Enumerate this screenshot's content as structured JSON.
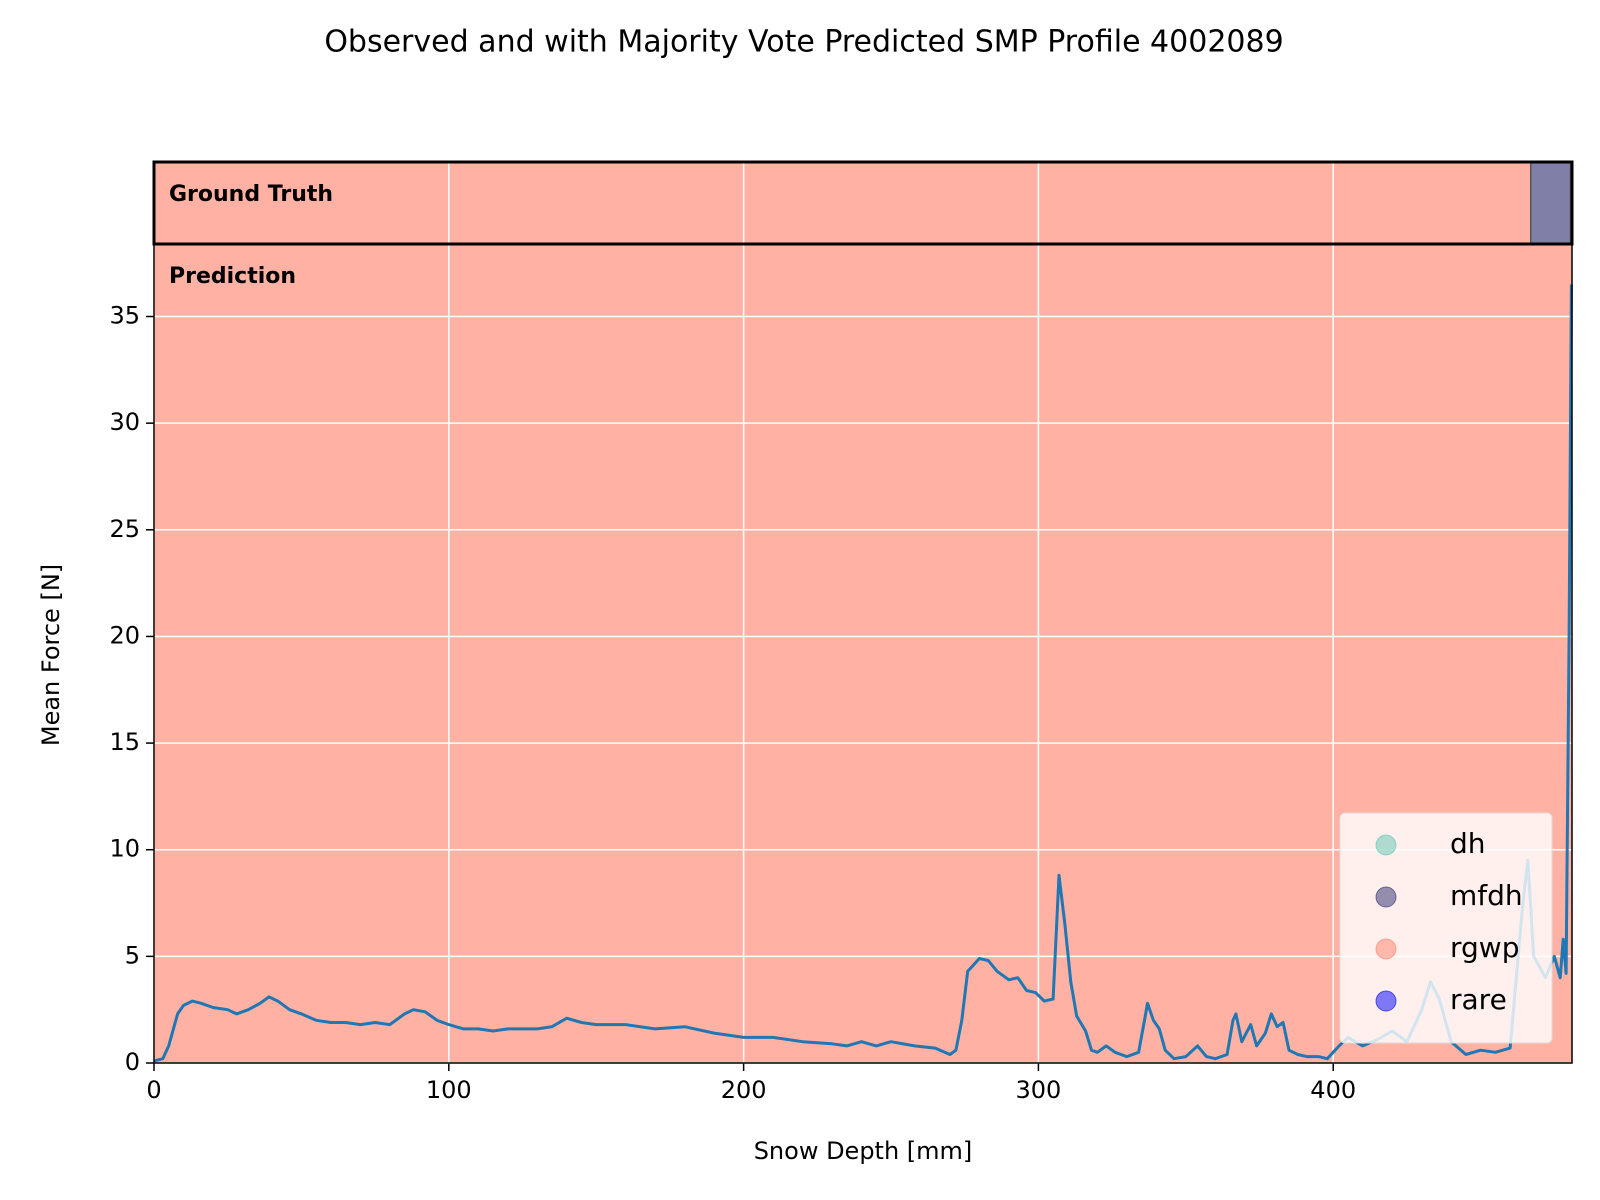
{
  "chart_data": {
    "type": "line",
    "title": "Observed and with Majority Vote Predicted SMP Profile 4002089",
    "xlabel": "Snow Depth [mm]",
    "ylabel": "Mean Force [N]",
    "xlim": [
      0,
      481
    ],
    "ylim": [
      0,
      38.4
    ],
    "xticks": [
      0,
      100,
      200,
      300,
      400
    ],
    "yticks": [
      0,
      5,
      10,
      15,
      20,
      25,
      30,
      35
    ],
    "grid": true,
    "legend_position": "lower right",
    "classes": [
      {
        "name": "dh",
        "color": "#5fc4b4"
      },
      {
        "name": "mfdh",
        "color": "#2a2a6e"
      },
      {
        "name": "rgwp",
        "color": "#ff7f65"
      },
      {
        "name": "rare",
        "color": "#0000ff"
      }
    ],
    "ground_truth": {
      "label": "Ground Truth",
      "segments": [
        {
          "class": "rgwp",
          "start": 0,
          "end": 467
        },
        {
          "class": "mfdh",
          "start": 467,
          "end": 480.5
        },
        {
          "class": "dh",
          "start": 480.5,
          "end": 481
        }
      ]
    },
    "prediction": {
      "label": "Prediction",
      "segments": [
        {
          "class": "rgwp",
          "start": 0,
          "end": 481
        }
      ]
    },
    "series": [
      {
        "color": "#1f77b4",
        "x": [
          0,
          3,
          5,
          8,
          10,
          13,
          16,
          20,
          25,
          28,
          32,
          36,
          39,
          42,
          46,
          50,
          55,
          60,
          65,
          70,
          75,
          80,
          85,
          88,
          92,
          96,
          100,
          105,
          110,
          115,
          120,
          125,
          130,
          135,
          140,
          145,
          150,
          160,
          170,
          180,
          190,
          200,
          210,
          220,
          230,
          235,
          240,
          245,
          250,
          258,
          265,
          270,
          272,
          274,
          276,
          278,
          280,
          283,
          286,
          290,
          293,
          296,
          299,
          302,
          305,
          307,
          309,
          311,
          313,
          316,
          318,
          320,
          323,
          326,
          330,
          334,
          336,
          337,
          339,
          341,
          343,
          346,
          350,
          354,
          357,
          360,
          364,
          366,
          367,
          369,
          372,
          374,
          377,
          379,
          381,
          383,
          385,
          388,
          391,
          395,
          398,
          402,
          405,
          410,
          415,
          420,
          425,
          430,
          433,
          436,
          440,
          445,
          450,
          455,
          460,
          464,
          466,
          468,
          472,
          475,
          477,
          478,
          479,
          480,
          480.8
        ],
        "values": [
          0.1,
          0.2,
          0.8,
          2.3,
          2.7,
          2.9,
          2.8,
          2.6,
          2.5,
          2.3,
          2.5,
          2.8,
          3.1,
          2.9,
          2.5,
          2.3,
          2.0,
          1.9,
          1.9,
          1.8,
          1.9,
          1.8,
          2.3,
          2.5,
          2.4,
          2.0,
          1.8,
          1.6,
          1.6,
          1.5,
          1.6,
          1.6,
          1.6,
          1.7,
          2.1,
          1.9,
          1.8,
          1.8,
          1.6,
          1.7,
          1.4,
          1.2,
          1.2,
          1.0,
          0.9,
          0.8,
          1.0,
          0.8,
          1.0,
          0.8,
          0.7,
          0.4,
          0.6,
          2.0,
          4.3,
          4.6,
          4.9,
          4.8,
          4.3,
          3.9,
          4.0,
          3.4,
          3.3,
          2.9,
          3.0,
          8.8,
          6.5,
          3.8,
          2.2,
          1.5,
          0.6,
          0.5,
          0.8,
          0.5,
          0.3,
          0.5,
          2.0,
          2.8,
          2.0,
          1.6,
          0.6,
          0.2,
          0.3,
          0.8,
          0.3,
          0.2,
          0.4,
          2.0,
          2.3,
          1.0,
          1.8,
          0.8,
          1.4,
          2.3,
          1.7,
          1.9,
          0.6,
          0.4,
          0.3,
          0.3,
          0.2,
          0.8,
          1.2,
          0.8,
          1.1,
          1.5,
          1.0,
          2.5,
          3.8,
          3.0,
          1.0,
          0.4,
          0.6,
          0.5,
          0.7,
          7.0,
          9.5,
          5.0,
          4.0,
          5.0,
          4.0,
          5.8,
          4.2,
          20,
          36.5
        ]
      }
    ]
  }
}
